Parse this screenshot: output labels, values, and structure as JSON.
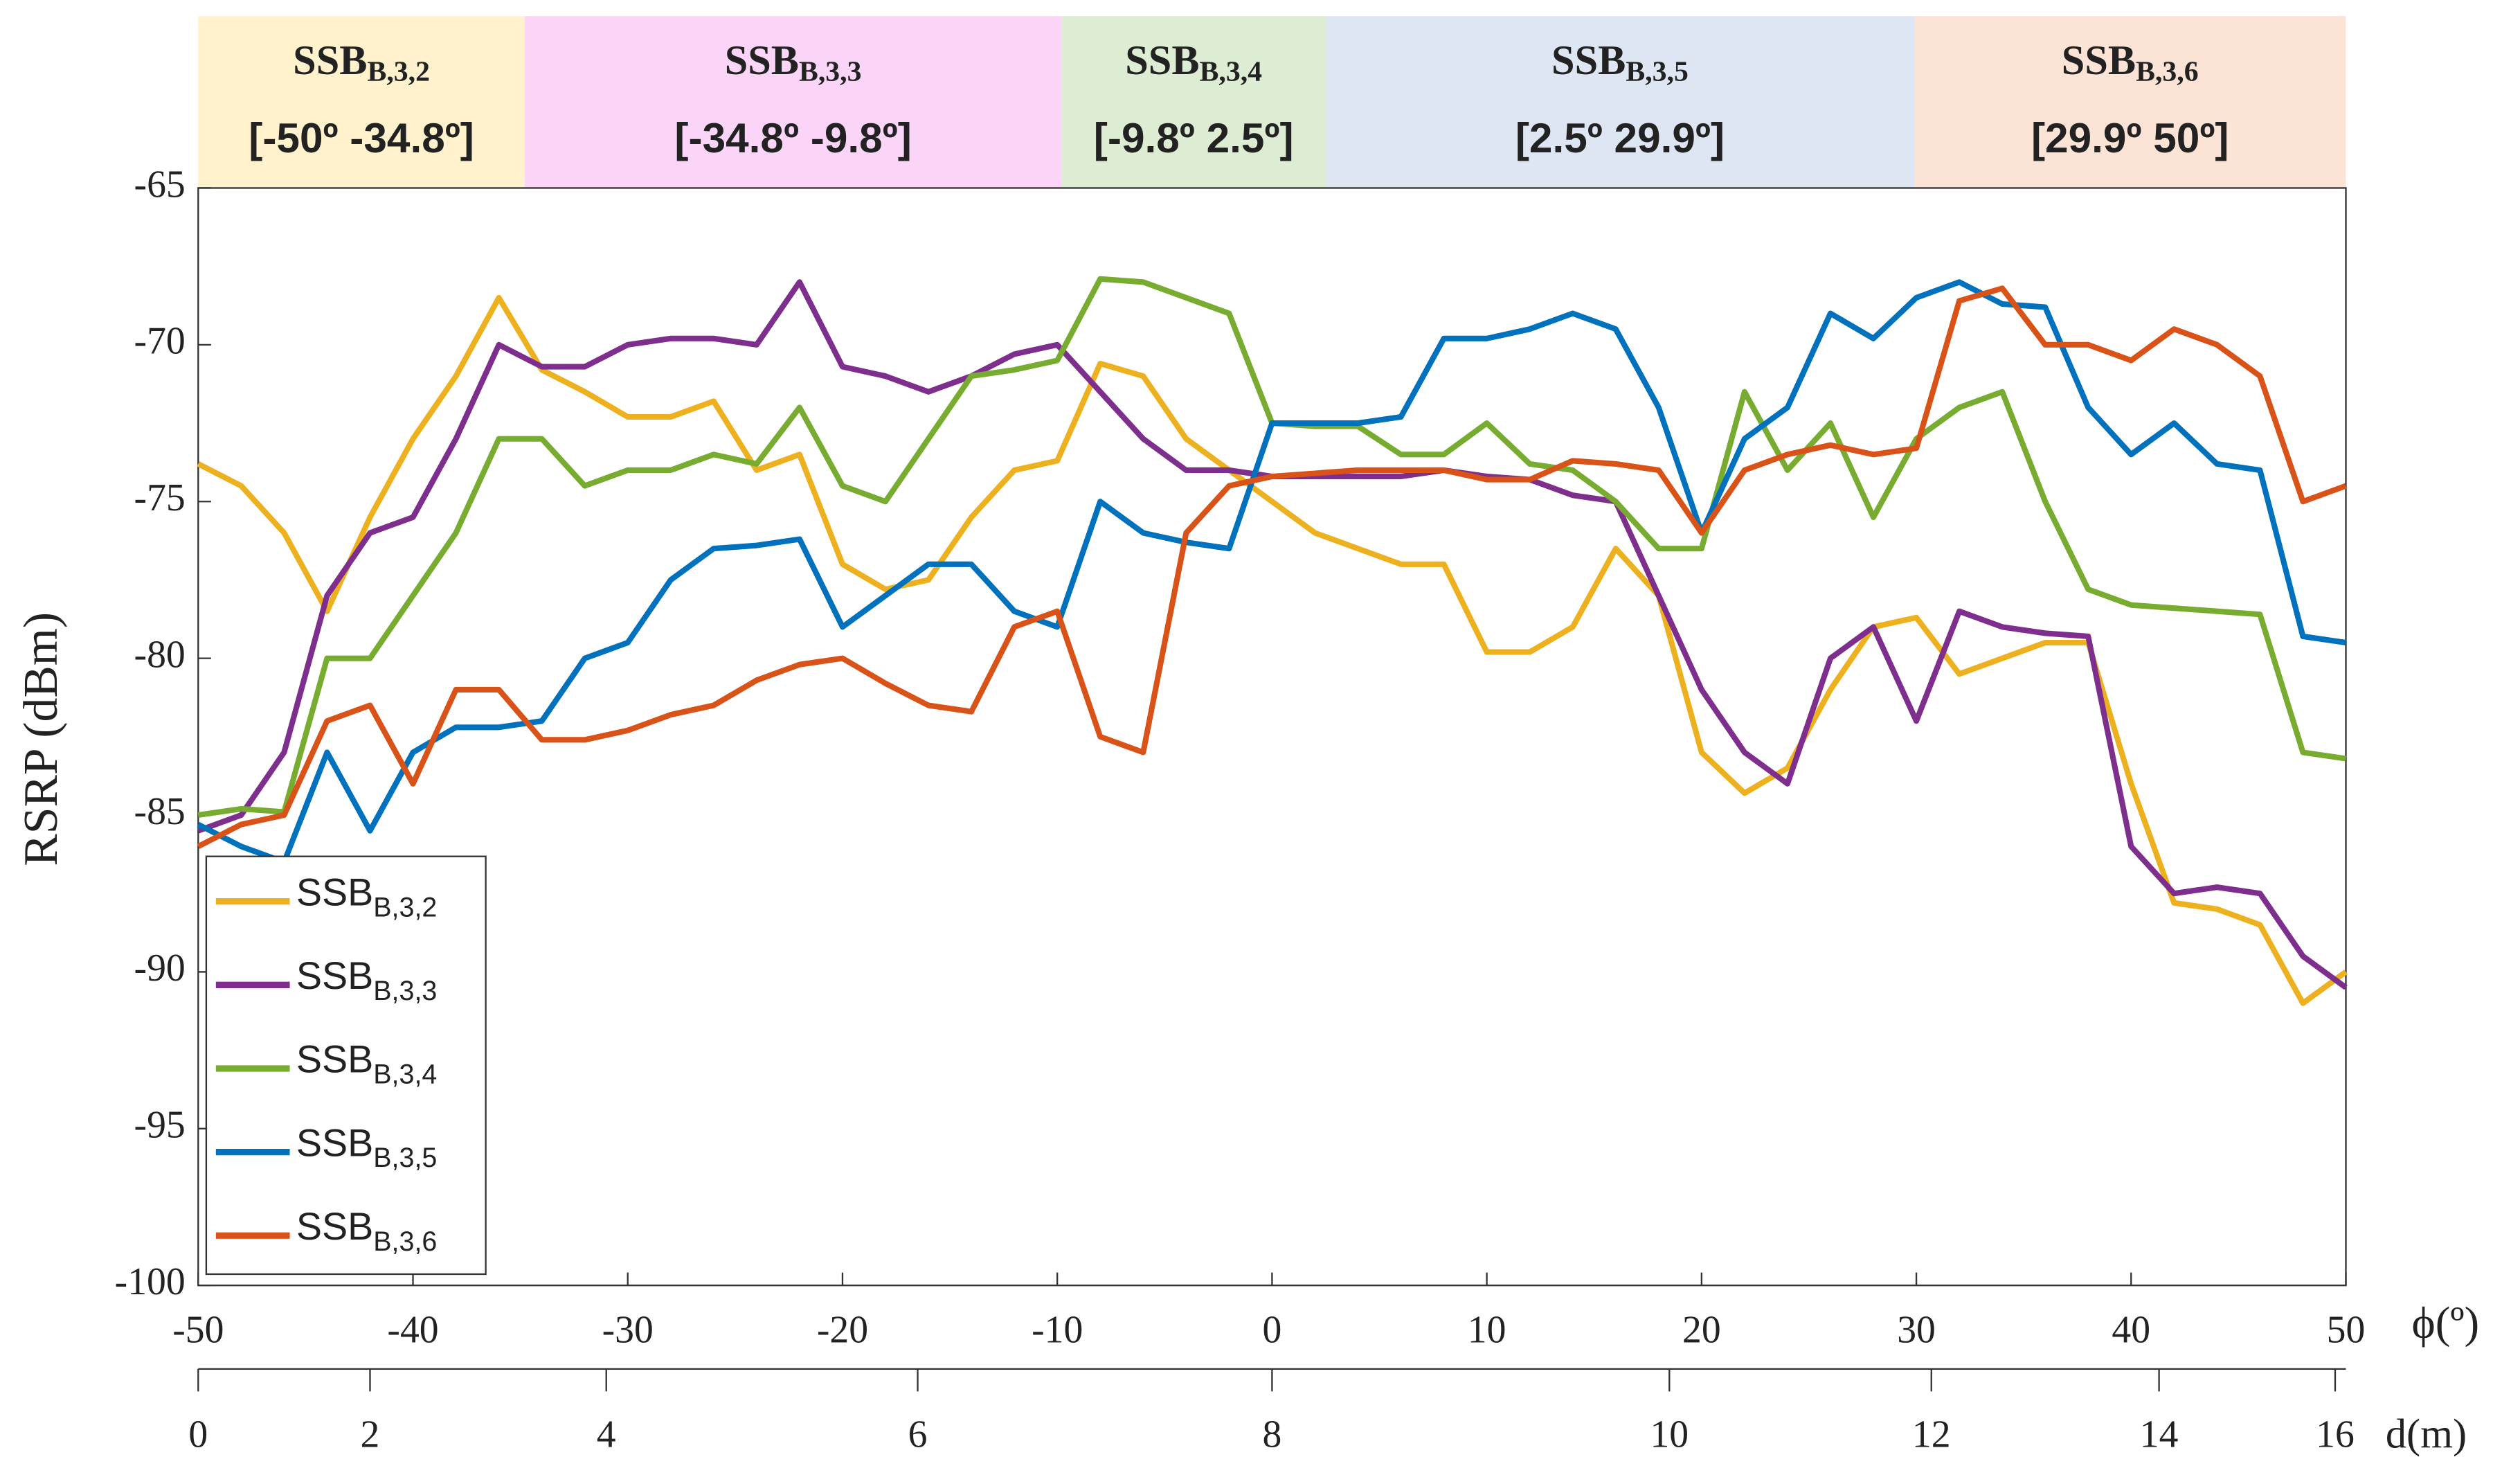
{
  "chart_data": {
    "type": "line",
    "ylabel": "RSRP (dBm)",
    "xlabel": "ϕ(º)",
    "x2label": "d(m)",
    "x": [
      -50,
      -48,
      -46,
      -44,
      -42,
      -40,
      -38,
      -36,
      -34,
      -32,
      -30,
      -28,
      -26,
      -24,
      -22,
      -20,
      -18,
      -16,
      -14,
      -12,
      -10,
      -8,
      -6,
      -4,
      -2,
      0,
      2,
      4,
      6,
      8,
      10,
      12,
      14,
      16,
      18,
      20,
      22,
      24,
      26,
      28,
      30,
      32,
      34,
      36,
      38,
      40,
      42,
      44,
      46,
      48,
      50
    ],
    "series": [
      {
        "name": "SSB",
        "sub": "B,3,2",
        "color": "#edb120",
        "values": [
          -73.8,
          -74.5,
          -76,
          -78.5,
          -75.5,
          -73,
          -71,
          -68.5,
          -70.8,
          -71.5,
          -72.3,
          -72.3,
          -71.8,
          -74,
          -73.5,
          -77,
          -77.8,
          -77.5,
          -75.5,
          -74,
          -73.7,
          -70.6,
          -71,
          -73,
          -74,
          -75,
          -76,
          -76.5,
          -77,
          -77,
          -79.8,
          -79.8,
          -79,
          -76.5,
          -78,
          -83,
          -84.3,
          -83.5,
          -81,
          -79,
          -78.7,
          -80.5,
          -80,
          -79.5,
          -79.5,
          -84,
          -87.8,
          -88,
          -88.5,
          -91,
          -90
        ]
      },
      {
        "name": "SSB",
        "sub": "B,3,3",
        "color": "#7e2f8e",
        "values": [
          -85.5,
          -85,
          -83,
          -78,
          -76,
          -75.5,
          -73,
          -70,
          -70.7,
          -70.7,
          -70,
          -69.8,
          -69.8,
          -70,
          -68,
          -70.7,
          -71,
          -71.5,
          -71,
          -70.3,
          -70,
          -71.5,
          -73,
          -74,
          -74,
          -74.2,
          -74.2,
          -74.2,
          -74.2,
          -74,
          -74.2,
          -74.3,
          -74.8,
          -75,
          -78,
          -81,
          -83,
          -84,
          -80,
          -79,
          -82,
          -78.5,
          -79,
          -79.2,
          -79.3,
          -86,
          -87.5,
          -87.3,
          -87.5,
          -89.5,
          -90.5
        ]
      },
      {
        "name": "SSB",
        "sub": "B,3,4",
        "color": "#77ac30",
        "values": [
          -85,
          -84.8,
          -84.9,
          -80,
          -80,
          -78,
          -76,
          -73,
          -73,
          -74.5,
          -74,
          -74,
          -73.5,
          -73.8,
          -72,
          -74.5,
          -75,
          -73,
          -71,
          -70.8,
          -70.5,
          -67.9,
          -68,
          -68.5,
          -69,
          -72.5,
          -72.6,
          -72.6,
          -73.5,
          -73.5,
          -72.5,
          -73.8,
          -74,
          -75,
          -76.5,
          -76.5,
          -71.5,
          -74,
          -72.5,
          -75.5,
          -73,
          -72,
          -71.5,
          -75,
          -77.8,
          -78.3,
          -78.4,
          -78.5,
          -78.6,
          -83,
          -83.2
        ]
      },
      {
        "name": "SSB",
        "sub": "B,3,5",
        "color": "#0072bd",
        "values": [
          -85.3,
          -86,
          -86.5,
          -83,
          -85.5,
          -83,
          -82.2,
          -82.2,
          -82,
          -80,
          -79.5,
          -77.5,
          -76.5,
          -76.4,
          -76.2,
          -79,
          -78,
          -77,
          -77,
          -78.5,
          -79,
          -75,
          -76,
          -76.3,
          -76.5,
          -72.5,
          -72.5,
          -72.5,
          -72.3,
          -69.8,
          -69.8,
          -69.5,
          -69,
          -69.5,
          -72,
          -76,
          -73,
          -72,
          -69,
          -69.8,
          -68.5,
          -68,
          -68.7,
          -68.8,
          -72,
          -73.5,
          -72.5,
          -73.8,
          -74,
          -79.3,
          -79.5
        ]
      },
      {
        "name": "SSB",
        "sub": "B,3,6",
        "color": "#d95319",
        "values": [
          -86,
          -85.3,
          -85,
          -82,
          -81.5,
          -84,
          -81,
          -81,
          -82.6,
          -82.6,
          -82.3,
          -81.8,
          -81.5,
          -80.7,
          -80.2,
          -80,
          -80.8,
          -81.5,
          -81.7,
          -79,
          -78.5,
          -82.5,
          -83,
          -76,
          -74.5,
          -74.2,
          -74.1,
          -74,
          -74,
          -74,
          -74.3,
          -74.3,
          -73.7,
          -73.8,
          -74,
          -76,
          -74,
          -73.5,
          -73.2,
          -73.5,
          -73.3,
          -68.6,
          -68.2,
          -70,
          -70,
          -70.5,
          -69.5,
          -70,
          -71,
          -75,
          -74.5
        ]
      }
    ],
    "xlim": [
      -50,
      50
    ],
    "xticks": [
      -50,
      -40,
      -30,
      -20,
      -10,
      0,
      10,
      20,
      30,
      40,
      50
    ],
    "ylim": [
      -100,
      -65
    ],
    "yticks": [
      -100,
      -95,
      -90,
      -85,
      -80,
      -75,
      -70,
      -65
    ],
    "x2ticks": [
      {
        "value": -50,
        "label": "0"
      },
      {
        "value": -42,
        "label": "2"
      },
      {
        "value": -31,
        "label": "4"
      },
      {
        "value": -16.5,
        "label": "6"
      },
      {
        "value": 0,
        "label": "8"
      },
      {
        "value": 18.5,
        "label": "10"
      },
      {
        "value": 30.7,
        "label": "12"
      },
      {
        "value": 41.3,
        "label": "14"
      },
      {
        "value": 49.5,
        "label": "16"
      }
    ],
    "header_bands": [
      {
        "name": "SSB",
        "sub": "B,3,2",
        "range": "[-50º -34.8º]",
        "from": -50,
        "to": -34.8,
        "color": "#fff2cc",
        "text_color": "#f5b71a"
      },
      {
        "name": "SSB",
        "sub": "B,3,3",
        "range": "[-34.8º -9.8º]",
        "from": -34.8,
        "to": -9.8,
        "color": "#fbd5f7",
        "text_color": "#7030a0"
      },
      {
        "name": "SSB",
        "sub": "B,3,4",
        "range": "[-9.8º 2.5º]",
        "from": -9.8,
        "to": 2.5,
        "color": "#dcedd3",
        "text_color": "#00b050"
      },
      {
        "name": "SSB",
        "sub": "B,3,5",
        "range": "[2.5º 29.9º]",
        "from": 2.5,
        "to": 29.9,
        "color": "#dde6f2",
        "text_color": "#0070c0"
      },
      {
        "name": "SSB",
        "sub": "B,3,6",
        "range": "[29.9º 50º]",
        "from": 29.9,
        "to": 50,
        "color": "#fbe3d6",
        "text_color": "#ff0000"
      }
    ],
    "legend": "lower left"
  }
}
